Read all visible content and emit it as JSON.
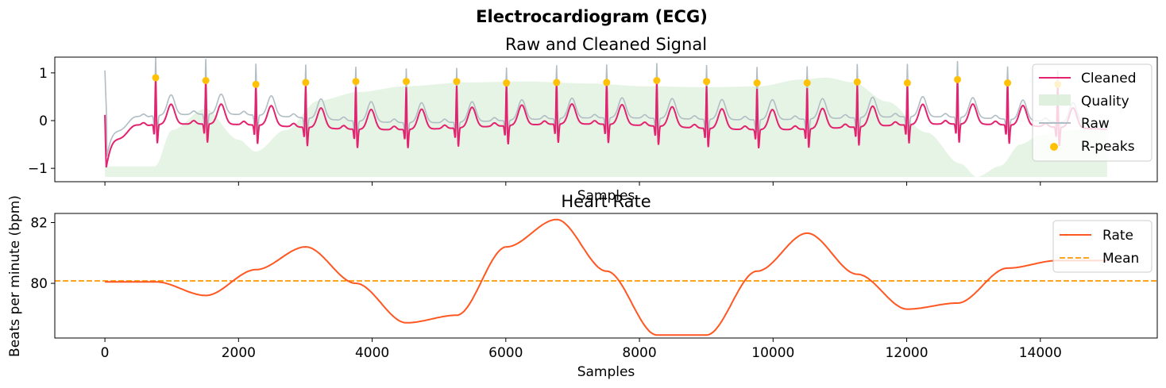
{
  "figure": {
    "suptitle": "Electrocardiogram (ECG)"
  },
  "colors": {
    "cleaned": "#E2236F",
    "quality": "#DCEFDA",
    "raw": "#B0BDC5",
    "rpeaks": "#FFC107",
    "rate": "#FF5722",
    "mean": "#FF9800"
  },
  "chart_data": [
    {
      "type": "line",
      "title": "Raw and Cleaned Signal",
      "xlabel": "Samples",
      "ylabel": "",
      "xlim": [
        -750,
        15750
      ],
      "ylim": [
        -1.28,
        1.33
      ],
      "yticks": [
        -1,
        0,
        1
      ],
      "ytick_labels": [
        "−1",
        "0",
        "1"
      ],
      "grid": false,
      "legend": "top-right",
      "series": [
        {
          "name": "Cleaned",
          "kind": "line"
        },
        {
          "name": "Quality",
          "kind": "area"
        },
        {
          "name": "Raw",
          "kind": "line"
        },
        {
          "name": "R-peaks",
          "kind": "scatter"
        }
      ],
      "rpeaks": {
        "x": [
          760,
          1510,
          2260,
          3005,
          3755,
          4510,
          5265,
          6010,
          6760,
          7510,
          8260,
          9005,
          9760,
          10510,
          11260,
          12010,
          12760,
          13510,
          14260
        ],
        "y": [
          0.9,
          0.84,
          0.76,
          0.8,
          0.82,
          0.82,
          0.82,
          0.79,
          0.8,
          0.8,
          0.84,
          0.82,
          0.79,
          0.79,
          0.81,
          0.79,
          0.86,
          0.79,
          0.76
        ]
      },
      "quality": {
        "x": [
          0,
          750,
          1000,
          1500,
          2000,
          2260,
          2700,
          3200,
          3800,
          4500,
          5400,
          6300,
          7200,
          8100,
          9000,
          9800,
          10400,
          10800,
          11200,
          11700,
          12300,
          12800,
          13050,
          13400,
          13700,
          14000,
          14500,
          15000
        ],
        "y": [
          -0.96,
          -0.96,
          -0.2,
          0.25,
          -0.4,
          -0.65,
          -0.2,
          0.42,
          0.6,
          0.72,
          0.8,
          0.82,
          0.78,
          0.72,
          0.7,
          0.72,
          0.86,
          0.9,
          0.8,
          0.4,
          -0.25,
          -0.9,
          -1.18,
          -0.95,
          -0.5,
          -0.3,
          -0.2,
          -0.2
        ],
        "baseline": -1.18
      }
    },
    {
      "type": "line",
      "title": "Heart Rate",
      "xlabel": "Samples",
      "ylabel": "Beats per minute (bpm)",
      "xlim": [
        -750,
        15750
      ],
      "ylim": [
        78.2,
        82.3
      ],
      "yticks": [
        80,
        82
      ],
      "ytick_labels": [
        "80",
        "82"
      ],
      "xticks": [
        0,
        2000,
        4000,
        6000,
        8000,
        10000,
        12000,
        14000
      ],
      "xtick_labels": [
        "0",
        "2000",
        "4000",
        "6000",
        "8000",
        "10000",
        "12000",
        "14000"
      ],
      "grid": false,
      "legend": "top-right",
      "mean": 80.08,
      "series": [
        {
          "name": "Rate",
          "x": [
            0,
            760,
            1510,
            2260,
            3005,
            3755,
            4510,
            5265,
            6010,
            6760,
            7510,
            8260,
            9005,
            9760,
            10510,
            11260,
            12010,
            12760,
            13510,
            14260,
            15000
          ],
          "values": [
            80.05,
            80.05,
            79.6,
            80.45,
            81.2,
            80.0,
            78.7,
            78.95,
            81.2,
            82.1,
            80.4,
            78.3,
            78.3,
            80.4,
            81.65,
            80.3,
            79.15,
            79.35,
            80.5,
            80.75,
            80.75
          ]
        },
        {
          "name": "Mean",
          "kind": "hline"
        }
      ]
    }
  ]
}
